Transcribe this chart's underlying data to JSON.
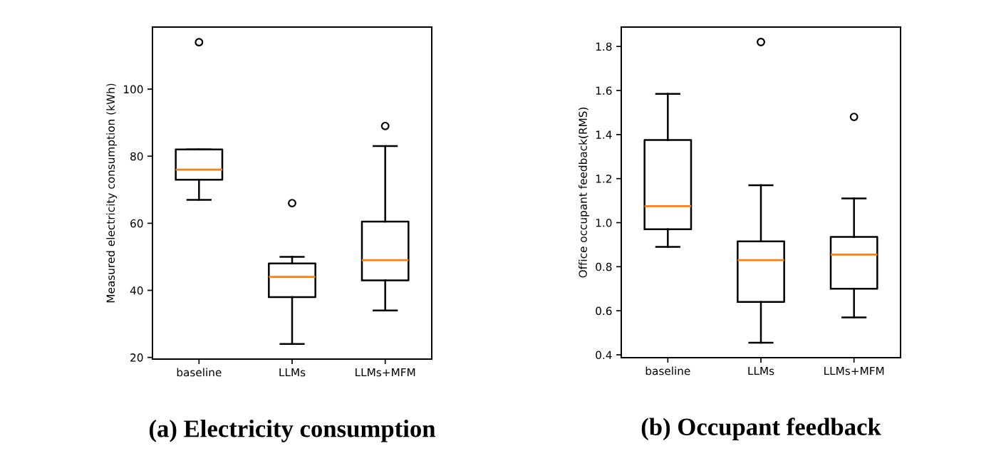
{
  "chart_data": [
    {
      "type": "box",
      "title": "(a) Electricity consumption",
      "ylabel": "Measured electricity consumption (kWh)",
      "categories": [
        "baseline",
        "LLMs",
        "LLMs+MFM"
      ],
      "boxes": [
        {
          "low": 67,
          "q1": 73,
          "median": 76,
          "q3": 82,
          "high": 82,
          "outliers": [
            114
          ]
        },
        {
          "low": 24,
          "q1": 38,
          "median": 44,
          "q3": 48,
          "high": 50,
          "outliers": [
            66
          ]
        },
        {
          "low": 34,
          "q1": 43,
          "median": 49,
          "q3": 60.5,
          "high": 83,
          "outliers": [
            89
          ]
        }
      ],
      "ylim": [
        19.5,
        118.5
      ],
      "yticks": [
        20,
        40,
        60,
        80,
        100
      ],
      "grid": false
    },
    {
      "type": "box",
      "title": "(b) Occupant feedback",
      "ylabel": "Office occupant feedback(RMS)",
      "categories": [
        "baseline",
        "LLMs",
        "LLMs+MFM"
      ],
      "boxes": [
        {
          "low": 0.89,
          "q1": 0.97,
          "median": 1.075,
          "q3": 1.375,
          "high": 1.585
        },
        {
          "low": 0.455,
          "q1": 0.64,
          "median": 0.83,
          "q3": 0.915,
          "high": 1.17,
          "outliers": [
            1.82
          ]
        },
        {
          "low": 0.57,
          "q1": 0.7,
          "median": 0.855,
          "q3": 0.935,
          "high": 1.11,
          "outliers": [
            1.48
          ]
        }
      ],
      "ylim": [
        0.387,
        1.888
      ],
      "yticks": [
        {
          "value": 0.4,
          "label": "0.4"
        },
        {
          "value": 0.6,
          "label": "0.6"
        },
        {
          "value": 0.8,
          "label": "0.8"
        },
        {
          "value": 1.0,
          "label": "1.0"
        },
        {
          "value": 1.2,
          "label": "1.2"
        },
        {
          "value": 1.4,
          "label": "1.4"
        },
        {
          "value": 1.6,
          "label": "1.6"
        },
        {
          "value": 1.8,
          "label": "1.8"
        }
      ],
      "grid": false
    }
  ]
}
